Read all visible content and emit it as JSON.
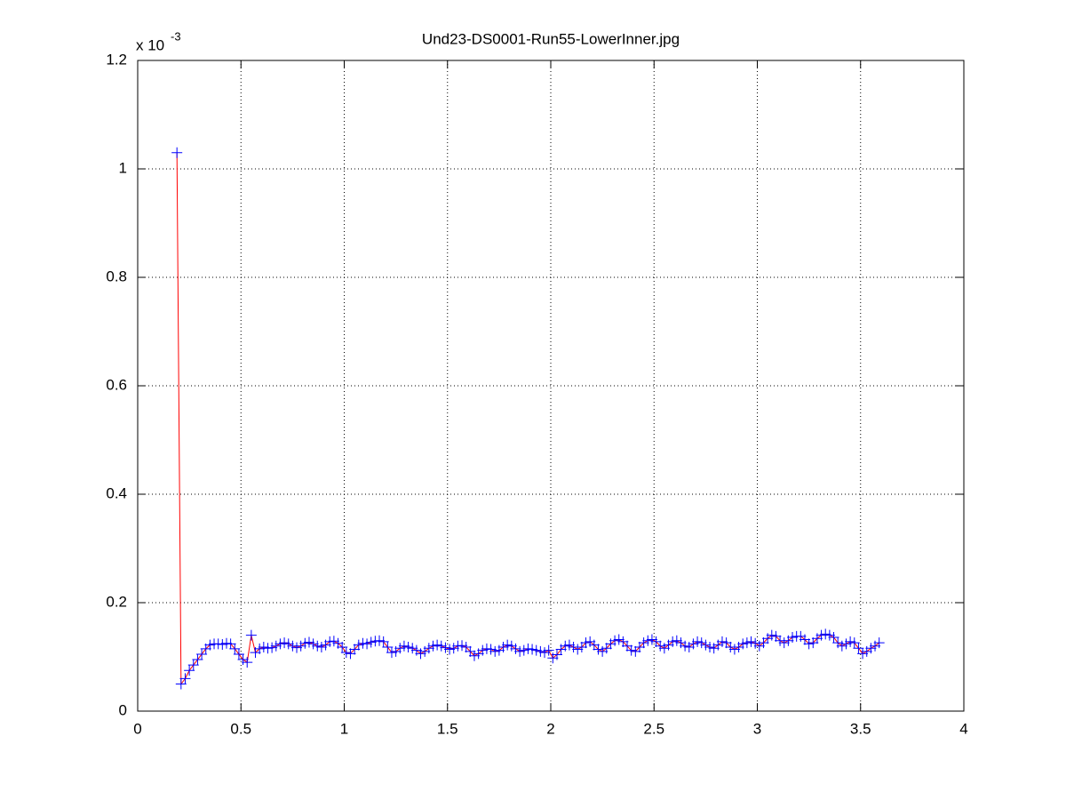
{
  "chart_data": {
    "type": "line",
    "title": "Und23-DS0001-Run55-LowerInner.jpg",
    "y_multiplier": {
      "base": "x 10",
      "exponent": "-3"
    },
    "x": [
      0.19,
      0.21,
      0.23,
      0.25,
      0.27,
      0.29,
      0.31,
      0.33,
      0.35,
      0.37,
      0.39,
      0.41,
      0.43,
      0.45,
      0.47,
      0.49,
      0.51,
      0.53,
      0.55,
      0.57,
      0.59,
      0.61,
      0.63,
      0.65,
      0.67,
      0.69,
      0.71,
      0.73,
      0.75,
      0.77,
      0.79,
      0.81,
      0.83,
      0.85,
      0.87,
      0.89,
      0.91,
      0.93,
      0.95,
      0.97,
      0.99,
      1.01,
      1.03,
      1.05,
      1.07,
      1.09,
      1.11,
      1.13,
      1.15,
      1.17,
      1.19,
      1.21,
      1.23,
      1.25,
      1.27,
      1.29,
      1.31,
      1.33,
      1.35,
      1.37,
      1.39,
      1.41,
      1.43,
      1.45,
      1.47,
      1.49,
      1.51,
      1.53,
      1.55,
      1.57,
      1.59,
      1.61,
      1.63,
      1.65,
      1.67,
      1.69,
      1.71,
      1.73,
      1.75,
      1.77,
      1.79,
      1.81,
      1.83,
      1.85,
      1.87,
      1.89,
      1.91,
      1.93,
      1.95,
      1.97,
      1.99,
      2.01,
      2.03,
      2.05,
      2.07,
      2.09,
      2.11,
      2.13,
      2.15,
      2.17,
      2.19,
      2.21,
      2.23,
      2.25,
      2.27,
      2.29,
      2.31,
      2.33,
      2.35,
      2.37,
      2.39,
      2.41,
      2.43,
      2.45,
      2.47,
      2.49,
      2.51,
      2.53,
      2.55,
      2.57,
      2.59,
      2.61,
      2.63,
      2.65,
      2.67,
      2.69,
      2.71,
      2.73,
      2.75,
      2.77,
      2.79,
      2.81,
      2.83,
      2.85,
      2.87,
      2.89,
      2.91,
      2.93,
      2.95,
      2.97,
      2.99,
      3.01,
      3.03,
      3.05,
      3.07,
      3.09,
      3.11,
      3.13,
      3.15,
      3.17,
      3.19,
      3.21,
      3.23,
      3.25,
      3.27,
      3.29,
      3.31,
      3.33,
      3.35,
      3.37,
      3.39,
      3.41,
      3.43,
      3.45,
      3.47,
      3.49,
      3.51,
      3.53,
      3.55,
      3.57,
      3.59
    ],
    "series": [
      {
        "color": "#ff0000",
        "marker": "+",
        "marker_color": "#0000ff",
        "values": [
          1.03,
          0.05,
          0.06,
          0.075,
          0.085,
          0.095,
          0.105,
          0.115,
          0.122,
          0.124,
          0.124,
          0.123,
          0.125,
          0.124,
          0.115,
          0.105,
          0.095,
          0.09,
          0.14,
          0.108,
          0.115,
          0.118,
          0.116,
          0.117,
          0.12,
          0.124,
          0.126,
          0.124,
          0.12,
          0.117,
          0.12,
          0.125,
          0.127,
          0.124,
          0.12,
          0.118,
          0.122,
          0.128,
          0.129,
          0.125,
          0.118,
          0.108,
          0.106,
          0.114,
          0.122,
          0.125,
          0.124,
          0.127,
          0.129,
          0.13,
          0.128,
          0.118,
          0.108,
          0.11,
          0.116,
          0.12,
          0.118,
          0.116,
          0.112,
          0.106,
          0.11,
          0.116,
          0.12,
          0.122,
          0.12,
          0.117,
          0.114,
          0.116,
          0.12,
          0.121,
          0.118,
          0.11,
          0.102,
          0.106,
          0.112,
          0.115,
          0.114,
          0.11,
          0.112,
          0.118,
          0.122,
          0.12,
          0.115,
          0.11,
          0.112,
          0.115,
          0.114,
          0.112,
          0.11,
          0.108,
          0.112,
          0.098,
          0.104,
          0.114,
          0.12,
          0.122,
          0.118,
          0.114,
          0.118,
          0.126,
          0.128,
          0.122,
          0.114,
          0.11,
          0.116,
          0.124,
          0.13,
          0.132,
          0.128,
          0.12,
          0.112,
          0.11,
          0.118,
          0.126,
          0.13,
          0.132,
          0.128,
          0.12,
          0.116,
          0.122,
          0.128,
          0.13,
          0.126,
          0.12,
          0.118,
          0.124,
          0.128,
          0.126,
          0.122,
          0.118,
          0.116,
          0.122,
          0.128,
          0.126,
          0.118,
          0.114,
          0.118,
          0.124,
          0.126,
          0.128,
          0.125,
          0.12,
          0.126,
          0.134,
          0.14,
          0.138,
          0.13,
          0.126,
          0.13,
          0.136,
          0.138,
          0.138,
          0.132,
          0.124,
          0.126,
          0.134,
          0.14,
          0.142,
          0.14,
          0.136,
          0.126,
          0.12,
          0.124,
          0.128,
          0.126,
          0.116,
          0.106,
          0.11,
          0.116,
          0.12,
          0.126
        ]
      }
    ],
    "xlim": [
      0,
      4
    ],
    "ylim": [
      0,
      1.2
    ],
    "xticks": [
      0,
      0.5,
      1,
      1.5,
      2,
      2.5,
      3,
      3.5,
      4
    ],
    "yticks": [
      0,
      0.2,
      0.4,
      0.6,
      0.8,
      1,
      1.2
    ],
    "grid": true
  }
}
